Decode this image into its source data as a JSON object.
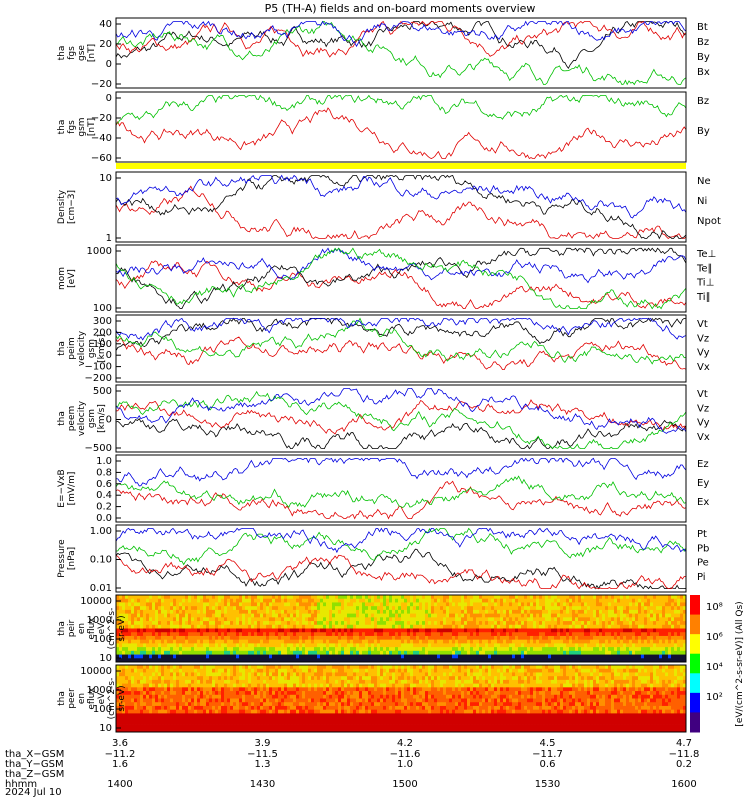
{
  "title": "P5 (TH-A) fields and on-board moments overview",
  "date_label": "2024 Jul 10",
  "colors": {
    "black": "#000000",
    "red": "#e00000",
    "green": "#00c000",
    "blue": "#0000e0",
    "yellow": "#ffff00"
  },
  "chart_data": [
    {
      "type": "line",
      "panel": "fgs_gse",
      "ylabel": [
        "tha",
        "fgs",
        "gse",
        "[nT]"
      ],
      "ylim": [
        -30,
        45
      ],
      "ticks": [
        "40",
        "20",
        "0",
        "−20"
      ],
      "series": [
        {
          "name": "Bt",
          "color": "#000000"
        },
        {
          "name": "Bz",
          "color": "#e00000"
        },
        {
          "name": "By",
          "color": "#00c000"
        },
        {
          "name": "Bx",
          "color": "#0000e0"
        }
      ]
    },
    {
      "type": "line",
      "panel": "fgs_gsm",
      "ylabel": [
        "tha",
        "fgs",
        "gsm",
        "[nT]"
      ],
      "ylim": [
        -70,
        10
      ],
      "ticks": [
        "0",
        "−20",
        "−40",
        "−60"
      ],
      "series": [
        {
          "name": "Bz",
          "color": "#e00000"
        },
        {
          "name": "By",
          "color": "#00c000"
        }
      ]
    },
    {
      "type": "line",
      "panel": "density",
      "ylabel": [
        "Density",
        "[cm−3]"
      ],
      "log": true,
      "ylim": [
        0.2,
        15
      ],
      "ticks": [
        "10",
        "1"
      ],
      "series": [
        {
          "name": "Ne",
          "color": "#e00000"
        },
        {
          "name": "Ni",
          "color": "#000000"
        },
        {
          "name": "Npot",
          "color": "#0000e0"
        }
      ]
    },
    {
      "type": "line",
      "panel": "temperature",
      "ylabel": [
        "mom",
        "[eV]"
      ],
      "log": true,
      "ylim": [
        30,
        3000
      ],
      "ticks": [
        "1000",
        "100"
      ],
      "series": [
        {
          "name": "Te⊥",
          "color": "#e00000"
        },
        {
          "name": "Te∥",
          "color": "#000000"
        },
        {
          "name": "Ti⊥",
          "color": "#0000e0"
        },
        {
          "name": "Ti∥",
          "color": "#00c000"
        }
      ]
    },
    {
      "type": "line",
      "panel": "peim_velocity",
      "ylabel": [
        "tha",
        "peim",
        "velocity",
        "gsm",
        "[km/s]"
      ],
      "ylim": [
        -200,
        300
      ],
      "ticks": [
        "300",
        "200",
        "100",
        "0",
        "−100",
        "−200"
      ],
      "series": [
        {
          "name": "Vt",
          "color": "#000000"
        },
        {
          "name": "Vz",
          "color": "#e00000"
        },
        {
          "name": "Vy",
          "color": "#00c000"
        },
        {
          "name": "Vx",
          "color": "#0000e0"
        }
      ]
    },
    {
      "type": "line",
      "panel": "peem_velocity",
      "ylabel": [
        "tha",
        "peem",
        "velocity",
        "gsm",
        "[km/s]"
      ],
      "ylim": [
        -900,
        900
      ],
      "ticks": [
        "500",
        "0",
        "−500"
      ],
      "series": [
        {
          "name": "Vt",
          "color": "#000000"
        },
        {
          "name": "Vz",
          "color": "#e00000"
        },
        {
          "name": "Vy",
          "color": "#00c000"
        },
        {
          "name": "Vx",
          "color": "#0000e0"
        }
      ]
    },
    {
      "type": "line",
      "panel": "efield",
      "ylabel": [
        "E=−VxB",
        "[mV/m]"
      ],
      "ylim": [
        0,
        1
      ],
      "ticks": [
        "1.0",
        "0.8",
        "0.6",
        "0.4",
        "0.2",
        "0.0"
      ],
      "series": [
        {
          "name": "Ez",
          "color": "#e00000"
        },
        {
          "name": "Ey",
          "color": "#00c000"
        },
        {
          "name": "Ex",
          "color": "#0000e0"
        }
      ]
    },
    {
      "type": "line",
      "panel": "pressure",
      "ylabel": [
        "Pressure",
        "[nPa]"
      ],
      "log": true,
      "ylim": [
        0.003,
        1.2
      ],
      "ticks": [
        "1.00",
        "0.10",
        "0.01"
      ],
      "series": [
        {
          "name": "Pt",
          "color": "#000000"
        },
        {
          "name": "Pb",
          "color": "#e00000"
        },
        {
          "name": "Pe",
          "color": "#00c000"
        },
        {
          "name": "Pi",
          "color": "#0000e0"
        }
      ]
    },
    {
      "type": "heatmap",
      "panel": "peir_flux",
      "ylabel": [
        "tha",
        "peir",
        "en",
        "eflux",
        "eV",
        "(cm^2-s-",
        "sr-eV)"
      ],
      "log": true,
      "ylim": [
        5,
        20000
      ],
      "ticks": [
        "10000",
        "1000",
        "100",
        "10"
      ]
    },
    {
      "type": "heatmap",
      "panel": "peer_flux",
      "ylabel": [
        "tha",
        "peer",
        "en",
        "eflux",
        "eV",
        "(cm^2-s-",
        "sr-eV)"
      ],
      "log": true,
      "ylim": [
        5,
        20000
      ],
      "ticks": [
        "10000",
        "1000",
        "100",
        "10"
      ]
    }
  ],
  "colorbar": {
    "ticks": [
      "10⁸",
      "10⁶",
      "10⁴",
      "10²"
    ],
    "label": "[eV/(cm^2-s-sr-eV)] (All Qs)"
  },
  "xaxis": {
    "r_ticks": [
      "3.6",
      "3.9",
      "4.2",
      "4.5",
      "4.7"
    ],
    "rows": [
      {
        "label": "tha_X−GSM",
        "values": [
          "−11.2",
          "−11.5",
          "−11.6",
          "−11.7",
          "−11.8"
        ]
      },
      {
        "label": "tha_Y−GSM",
        "values": [
          "1.6",
          "1.3",
          "1.0",
          "0.6",
          "0.2"
        ]
      },
      {
        "label": "tha_Z−GSM",
        "values": [
          "",
          "",
          "",
          "",
          ""
        ]
      },
      {
        "label": "hhmm",
        "values": [
          "1400",
          "1430",
          "1500",
          "1530",
          "1600"
        ]
      }
    ]
  }
}
